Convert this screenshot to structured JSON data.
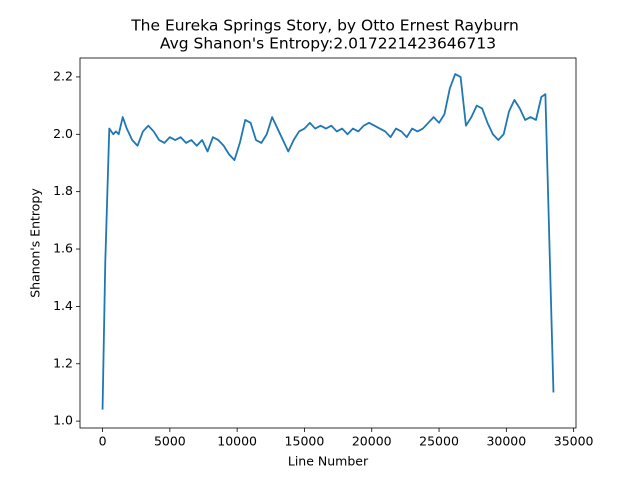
{
  "chart_data": {
    "type": "line",
    "title": "The Eureka Springs Story, by Otto Ernest Rayburn",
    "subtitle": "Avg Shanon's Entropy:2.017221423646713",
    "xlabel": "Line Number",
    "ylabel": "Shanon's Entropy",
    "color": "#1f77b4",
    "x": [
      0,
      200,
      500,
      800,
      1000,
      1200,
      1500,
      1800,
      2200,
      2600,
      3000,
      3400,
      3800,
      4200,
      4600,
      5000,
      5400,
      5800,
      6200,
      6600,
      7000,
      7400,
      7800,
      8200,
      8600,
      9000,
      9400,
      9800,
      10200,
      10600,
      11000,
      11400,
      11800,
      12200,
      12600,
      13000,
      13400,
      13800,
      14200,
      14600,
      15000,
      15400,
      15800,
      16200,
      16600,
      17000,
      17400,
      17800,
      18200,
      18600,
      19000,
      19400,
      19800,
      20200,
      20600,
      21000,
      21400,
      21800,
      22200,
      22600,
      23000,
      23400,
      23800,
      24200,
      24600,
      25000,
      25400,
      25800,
      26200,
      26600,
      27000,
      27400,
      27800,
      28200,
      28600,
      29000,
      29400,
      29800,
      30200,
      30600,
      31000,
      31400,
      31800,
      32200,
      32600,
      32900,
      33500
    ],
    "values": [
      1.04,
      1.55,
      2.02,
      2.0,
      2.01,
      2.0,
      2.06,
      2.02,
      1.98,
      1.96,
      2.01,
      2.03,
      2.01,
      1.98,
      1.97,
      1.99,
      1.98,
      1.99,
      1.97,
      1.98,
      1.96,
      1.98,
      1.94,
      1.99,
      1.98,
      1.96,
      1.93,
      1.91,
      1.97,
      2.05,
      2.04,
      1.98,
      1.97,
      2.0,
      2.06,
      2.02,
      1.98,
      1.94,
      1.98,
      2.01,
      2.02,
      2.04,
      2.02,
      2.03,
      2.02,
      2.03,
      2.01,
      2.02,
      2.0,
      2.02,
      2.01,
      2.03,
      2.04,
      2.03,
      2.02,
      2.01,
      1.99,
      2.02,
      2.01,
      1.99,
      2.02,
      2.01,
      2.02,
      2.04,
      2.06,
      2.04,
      2.07,
      2.16,
      2.21,
      2.2,
      2.03,
      2.06,
      2.1,
      2.09,
      2.04,
      2.0,
      1.98,
      2.0,
      2.08,
      2.12,
      2.09,
      2.05,
      2.06,
      2.05,
      2.13,
      2.14,
      1.1
    ],
    "xlim": [
      -1675,
      35175
    ],
    "xticks": [
      0,
      5000,
      10000,
      15000,
      20000,
      25000,
      30000,
      35000
    ],
    "ylim": [
      0.976,
      2.266
    ],
    "yticks": [
      {
        "value": 1,
        "label": "1.0"
      },
      1.2,
      1.4,
      1.6,
      1.8,
      {
        "value": 2,
        "label": "2.0"
      },
      2.2
    ]
  }
}
